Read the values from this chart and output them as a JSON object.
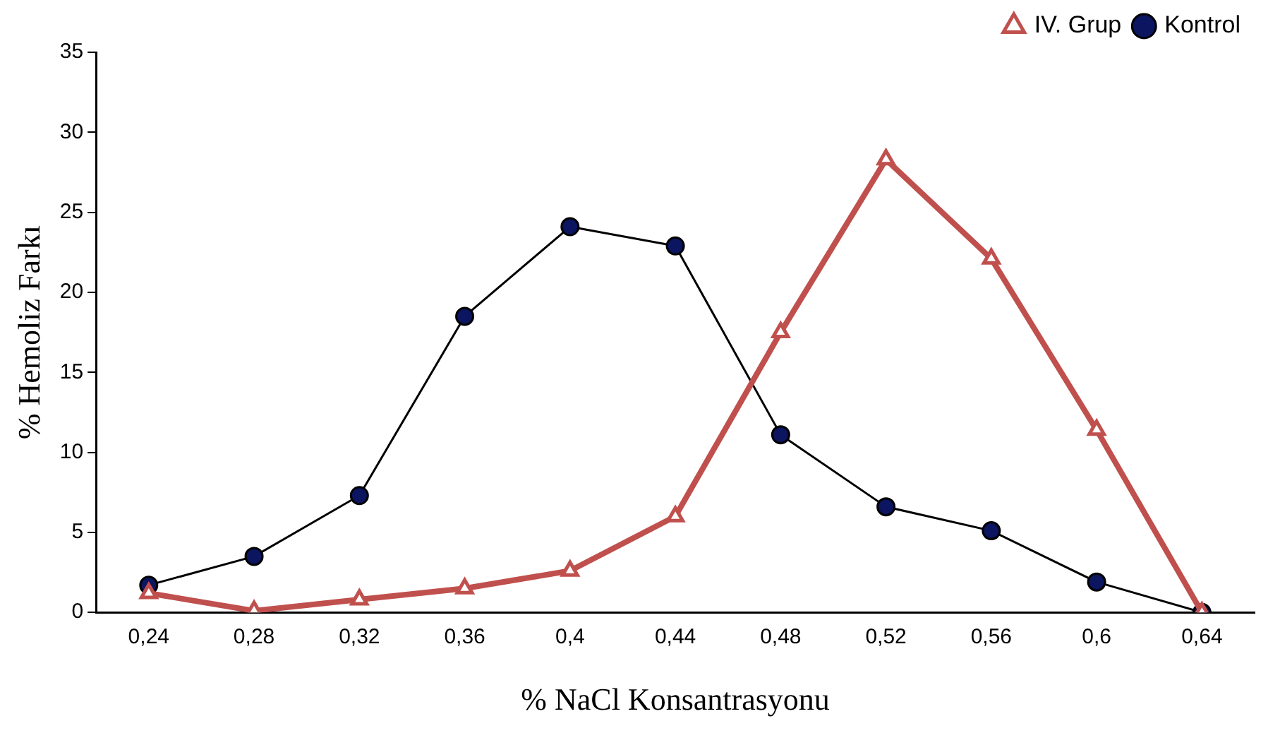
{
  "chart_data": {
    "type": "line",
    "xlabel": "% NaCl Konsantrasyonu",
    "ylabel": "% Hemoliz Farkı",
    "categories": [
      "0,24",
      "0,28",
      "0,32",
      "0,36",
      "0,4",
      "0,44",
      "0,48",
      "0,52",
      "0,56",
      "0,6",
      "0,64"
    ],
    "series": [
      {
        "name": "Kontrol",
        "color": "#000000",
        "marker": "circle",
        "values": [
          1.7,
          3.5,
          7.3,
          18.5,
          24.1,
          22.9,
          11.1,
          6.6,
          5.1,
          1.9,
          0
        ]
      },
      {
        "name": "IV. Grup",
        "color": "#c0504d",
        "marker": "triangle",
        "values": [
          1.2,
          0.1,
          0.8,
          1.5,
          2.6,
          6.0,
          17.5,
          28.3,
          22.1,
          11.4,
          0
        ]
      }
    ],
    "ylim": [
      0,
      35
    ],
    "yticks": [
      0,
      5,
      10,
      15,
      20,
      25,
      30,
      35
    ],
    "grid": false,
    "legend": "top right",
    "line_style": "solid"
  }
}
